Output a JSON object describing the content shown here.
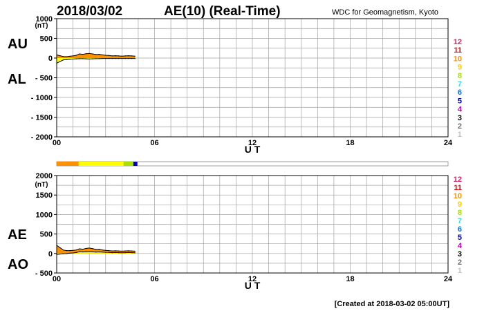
{
  "header": {
    "date": "2018/03/02",
    "title": "AE(10) (Real-Time)",
    "source": "WDC for Geomagnetism, Kyoto"
  },
  "footer": {
    "created": "[Created at 2018-03-02 05:00UT]"
  },
  "station_legend": {
    "labels": [
      "12",
      "11",
      "10",
      "9",
      "8",
      "7",
      "6",
      "5",
      "4",
      "3",
      "2",
      "1"
    ],
    "colors": [
      "#e0206e",
      "#e00000",
      "#ff9000",
      "#ffd000",
      "#a8e000",
      "#30e0e0",
      "#1070e0",
      "#0000c0",
      "#c000c0",
      "#000000",
      "#707070",
      "#c0c0c0"
    ]
  },
  "coverage_bar": {
    "segments": [
      {
        "from_ut": 0.0,
        "to_ut": 1.35,
        "stations": 10,
        "color": "#ff9000"
      },
      {
        "from_ut": 1.35,
        "to_ut": 4.1,
        "stations": 9,
        "color": "#ffff00"
      },
      {
        "from_ut": 4.1,
        "to_ut": 4.7,
        "stations": 8,
        "color": "#a8e000"
      },
      {
        "from_ut": 4.7,
        "to_ut": 4.95,
        "stations": 5,
        "color": "#0000c0"
      }
    ]
  },
  "chart_data": [
    {
      "type": "area",
      "panel": "AU/AL",
      "ylabel_unit": "(nT)",
      "side_labels": [
        "AU",
        "AL"
      ],
      "xlabel": "U T",
      "xlim": [
        0,
        24
      ],
      "ylim": [
        -2000,
        1000
      ],
      "x_ticks": [
        "00",
        "06",
        "12",
        "18",
        "24"
      ],
      "y_tick_values": [
        1000,
        500,
        0,
        -500,
        -1000,
        -1500,
        -2000
      ],
      "y_tick_labels": [
        "1000",
        "500",
        "0",
        "- 500",
        "- 1000",
        "- 1500",
        "- 2000"
      ],
      "grid": true,
      "x": [
        0.0,
        0.2,
        0.4,
        0.6,
        0.8,
        1.0,
        1.2,
        1.4,
        1.6,
        1.8,
        2.0,
        2.2,
        2.4,
        2.6,
        2.8,
        3.0,
        3.2,
        3.4,
        3.6,
        3.8,
        4.0,
        4.2,
        4.4,
        4.6,
        4.8
      ],
      "series": [
        {
          "values": [
            80,
            60,
            40,
            35,
            45,
            55,
            70,
            105,
            95,
            110,
            115,
            105,
            90,
            95,
            80,
            70,
            65,
            55,
            60,
            55,
            50,
            55,
            60,
            55,
            50
          ]
        },
        {
          "values": [
            -130,
            -90,
            -50,
            -40,
            -30,
            -25,
            -20,
            -15,
            -15,
            -20,
            -25,
            -20,
            -15,
            -15,
            -10,
            -10,
            -10,
            -10,
            -10,
            -10,
            -10,
            -10,
            -10,
            -10,
            -10
          ]
        }
      ]
    },
    {
      "type": "area",
      "panel": "AE/AO",
      "ylabel_unit": "(nT)",
      "side_labels": [
        "AE",
        "AO"
      ],
      "xlabel": "U T",
      "xlim": [
        0,
        24
      ],
      "ylim": [
        -500,
        2000
      ],
      "x_ticks": [
        "00",
        "06",
        "12",
        "18",
        "24"
      ],
      "y_tick_values": [
        2000,
        1500,
        1000,
        500,
        0,
        -500
      ],
      "y_tick_labels": [
        "2000",
        "1500",
        "1000",
        "500",
        "0",
        "- 500"
      ],
      "grid": true,
      "x": [
        0.0,
        0.2,
        0.4,
        0.6,
        0.8,
        1.0,
        1.2,
        1.4,
        1.6,
        1.8,
        2.0,
        2.2,
        2.4,
        2.6,
        2.8,
        3.0,
        3.2,
        3.4,
        3.6,
        3.8,
        4.0,
        4.2,
        4.4,
        4.6,
        4.8
      ],
      "series": [
        {
          "values": [
            210,
            150,
            90,
            75,
            75,
            80,
            90,
            120,
            110,
            130,
            140,
            125,
            105,
            110,
            90,
            80,
            75,
            65,
            70,
            65,
            60,
            65,
            70,
            65,
            60
          ]
        },
        {
          "values": [
            -25,
            -15,
            -5,
            -3,
            8,
            15,
            25,
            45,
            40,
            45,
            45,
            42,
            38,
            40,
            35,
            30,
            28,
            22,
            25,
            22,
            20,
            22,
            25,
            22,
            20
          ]
        }
      ]
    }
  ]
}
